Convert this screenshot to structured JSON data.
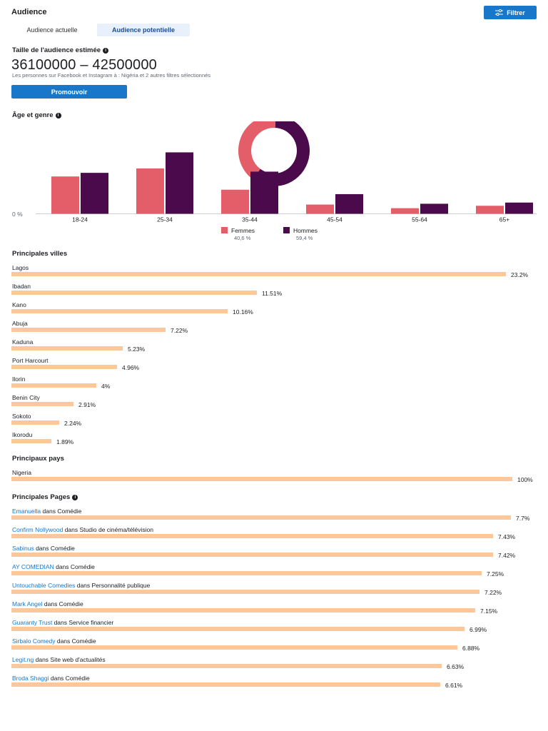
{
  "header": {
    "title": "Audience",
    "filter_label": "Filtrer"
  },
  "tabs": [
    {
      "label": "Audience actuelle",
      "active": false
    },
    {
      "label": "Audience potentielle",
      "active": true
    }
  ],
  "audience_size": {
    "title": "Taille de l'audience estimée",
    "range": "36100000 – 42500000",
    "description": "Les personnes sur Facebook et Instagram à : Nigéria et 2 autres filtres sélectionnés",
    "promote_label": "Promouvoir"
  },
  "age_gender": {
    "title": "Âge et genre",
    "zero_label": "0 %",
    "legend": [
      {
        "label": "Femmes",
        "value": "40,6 %"
      },
      {
        "label": "Hommes",
        "value": "59,4 %"
      }
    ]
  },
  "chart_data": {
    "type": "bar",
    "title": "Âge et genre",
    "categories": [
      "18-24",
      "25-34",
      "35-44",
      "45-54",
      "55-64",
      "65+"
    ],
    "series": [
      {
        "name": "Femmes",
        "values": [
          9.3,
          11.3,
          6.0,
          2.3,
          1.4,
          2.0
        ]
      },
      {
        "name": "Hommes",
        "values": [
          10.2,
          15.3,
          10.5,
          4.9,
          2.5,
          2.8
        ]
      }
    ],
    "ylim": [
      0,
      16
    ],
    "donut": [
      {
        "name": "Femmes",
        "value": 40.6
      },
      {
        "name": "Hommes",
        "value": 59.4
      }
    ]
  },
  "colors": {
    "femmes": "#e45e69",
    "hommes": "#4a0a4c",
    "bar": "#fcc89a",
    "accent": "#1877c9"
  },
  "cities": {
    "title": "Principales villes",
    "max": 23.2,
    "items": [
      {
        "name": "Lagos",
        "value": 23.2,
        "label": "23.2%"
      },
      {
        "name": "Ibadan",
        "value": 11.51,
        "label": "11.51%"
      },
      {
        "name": "Kano",
        "value": 10.16,
        "label": "10.16%"
      },
      {
        "name": "Abuja",
        "value": 7.22,
        "label": "7.22%"
      },
      {
        "name": "Kaduna",
        "value": 5.23,
        "label": "5.23%"
      },
      {
        "name": "Port Harcourt",
        "value": 4.96,
        "label": "4.96%"
      },
      {
        "name": "Ilorin",
        "value": 4,
        "label": "4%"
      },
      {
        "name": "Benin City",
        "value": 2.91,
        "label": "2.91%"
      },
      {
        "name": "Sokoto",
        "value": 2.24,
        "label": "2.24%"
      },
      {
        "name": "Ikorodu",
        "value": 1.89,
        "label": "1.89%"
      }
    ]
  },
  "countries": {
    "title": "Principaux pays",
    "max": 100,
    "items": [
      {
        "name": "Nigeria",
        "value": 100,
        "label": "100%"
      }
    ]
  },
  "pages": {
    "title": "Principales Pages",
    "max": 7.7,
    "items": [
      {
        "name": "Emanuella",
        "category": " dans Comédie",
        "value": 7.7,
        "label": "7.7%"
      },
      {
        "name": "Confirm Nollywood",
        "category": " dans Studio de cinéma/télévision",
        "value": 7.43,
        "label": "7.43%"
      },
      {
        "name": "Sabinus",
        "category": " dans Comédie",
        "value": 7.42,
        "label": "7.42%"
      },
      {
        "name": "AY COMEDIAN",
        "category": " dans Comédie",
        "value": 7.25,
        "label": "7.25%"
      },
      {
        "name": "Untouchable Comedies",
        "category": " dans Personnalité publique",
        "value": 7.22,
        "label": "7.22%"
      },
      {
        "name": "Mark Angel",
        "category": " dans Comédie",
        "value": 7.15,
        "label": "7.15%"
      },
      {
        "name": "Guaranty Trust",
        "category": " dans Service financier",
        "value": 6.99,
        "label": "6.99%"
      },
      {
        "name": "Sirbalo Comedy",
        "category": " dans Comédie",
        "value": 6.88,
        "label": "6.88%"
      },
      {
        "name": "Legit.ng",
        "category": " dans Site web d'actualités",
        "value": 6.63,
        "label": "6.63%"
      },
      {
        "name": "Broda Shaggi",
        "category": " dans Comédie",
        "value": 6.61,
        "label": "6.61%"
      }
    ]
  }
}
